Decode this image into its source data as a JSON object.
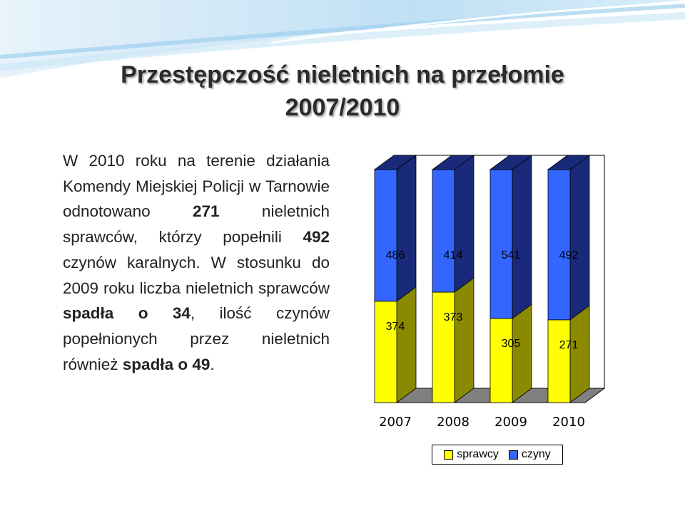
{
  "header": {
    "title_line1": "Przestępczość nieletnich na przełomie",
    "title_line2": "2007/2010"
  },
  "text": {
    "p1": "W 2010 roku na terenie działania Komendy Miejskiej Policji w Tarnowie odnotowano ",
    "n1": "271",
    "p2": " nieletnich sprawców, którzy popełnili ",
    "n2": "492",
    "p3": " czynów karalnych. W stosunku do 2009 roku liczba nieletnich sprawców ",
    "b1": "spadła o 34",
    "p4": ", ilość czynów popełnionych przez nieletnich również ",
    "b2": "spadła o 49",
    "p5": "."
  },
  "colors": {
    "sprawcy": "#ffff00",
    "sprawcy_side": "#8a8a00",
    "czyny": "#3366ff",
    "czyny_side": "#1a2a7a",
    "floor": "#808080"
  },
  "chart_data": {
    "type": "bar",
    "stacked": true,
    "percent_stacked": true,
    "three_d": true,
    "categories": [
      "2007",
      "2008",
      "2009",
      "2010"
    ],
    "series": [
      {
        "name": "sprawcy",
        "values": [
          374,
          373,
          305,
          271
        ]
      },
      {
        "name": "czyny",
        "values": [
          486,
          414,
          541,
          492
        ]
      }
    ],
    "legend_position": "bottom",
    "grid": false
  }
}
